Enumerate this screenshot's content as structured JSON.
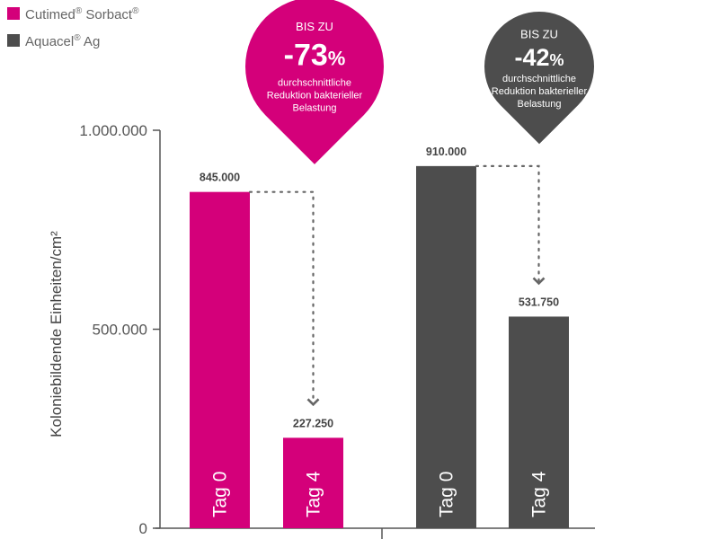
{
  "chart_data": {
    "type": "bar",
    "ylabel": "Koloniebildende Einheiten/cm²",
    "ylim": [
      0,
      1000000
    ],
    "y_ticks": [
      {
        "value": 0,
        "label": "0"
      },
      {
        "value": 500000,
        "label": "500.000"
      },
      {
        "value": 1000000,
        "label": "1.000.000"
      }
    ],
    "legend_position": "top-left",
    "grid": false,
    "categories": [
      "Tag 0",
      "Tag 4"
    ],
    "series": [
      {
        "name": "Cutimed® Sorbact®",
        "legend_base": "Cutimed",
        "legend_mid": " Sorbact",
        "sup": "®",
        "color": "#d4007a",
        "values": [
          845000,
          227250
        ],
        "value_labels": [
          "845.000",
          "227.250"
        ],
        "reduction": {
          "prefix": "BIS ZU",
          "number": "-73",
          "percent": "%",
          "line1": "durchschnittliche",
          "line2": "Reduktion bakterieller",
          "line3": "Belastung"
        }
      },
      {
        "name": "Aquacel® Ag",
        "legend_base": "Aquacel",
        "legend_mid": " Ag",
        "sup": "®",
        "color": "#4d4d4d",
        "values": [
          910000,
          531750
        ],
        "value_labels": [
          "910.000",
          "531.750"
        ],
        "reduction": {
          "prefix": "BIS ZU",
          "number": "-42",
          "percent": "%",
          "line1": "durchschnittliche",
          "line2": "Reduktion bakterieller",
          "line3": "Belastung"
        }
      }
    ]
  }
}
